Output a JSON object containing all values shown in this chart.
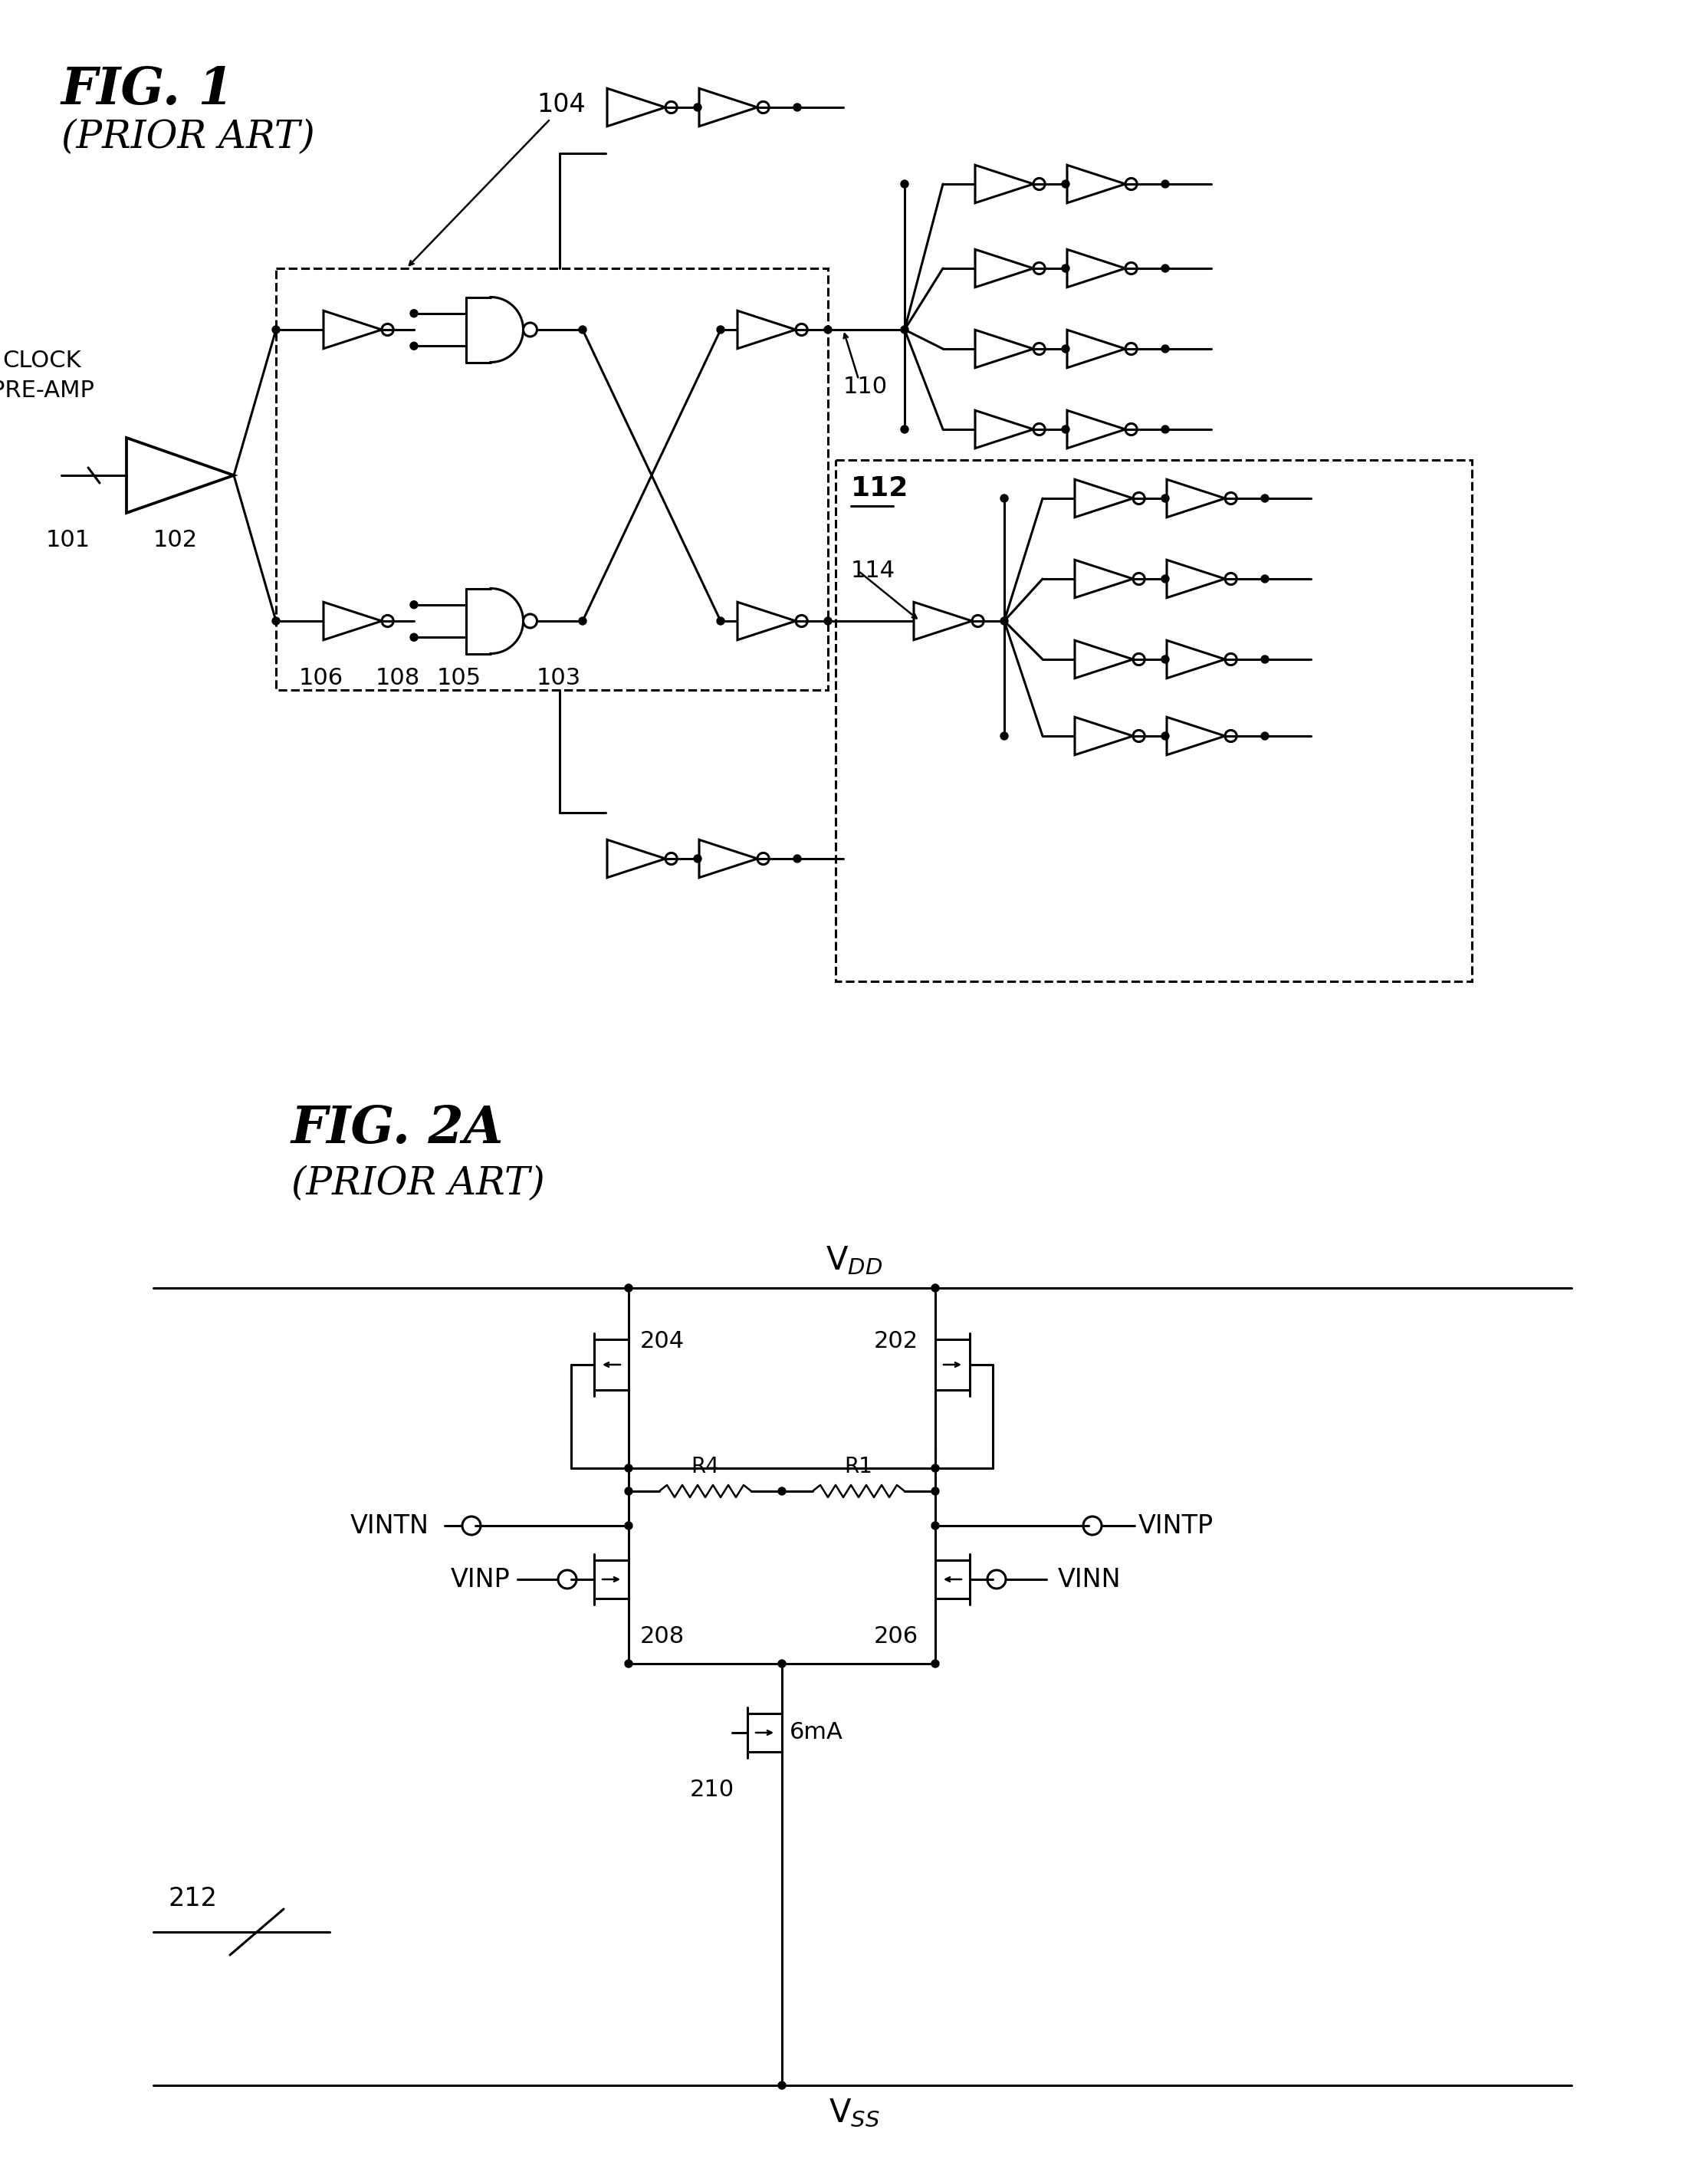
{
  "fig1_title": "FIG. 1",
  "fig1_subtitle": "(PRIOR ART)",
  "fig2a_title": "FIG. 2A",
  "fig2a_subtitle": "(PRIOR ART)",
  "bg": "#ffffff"
}
